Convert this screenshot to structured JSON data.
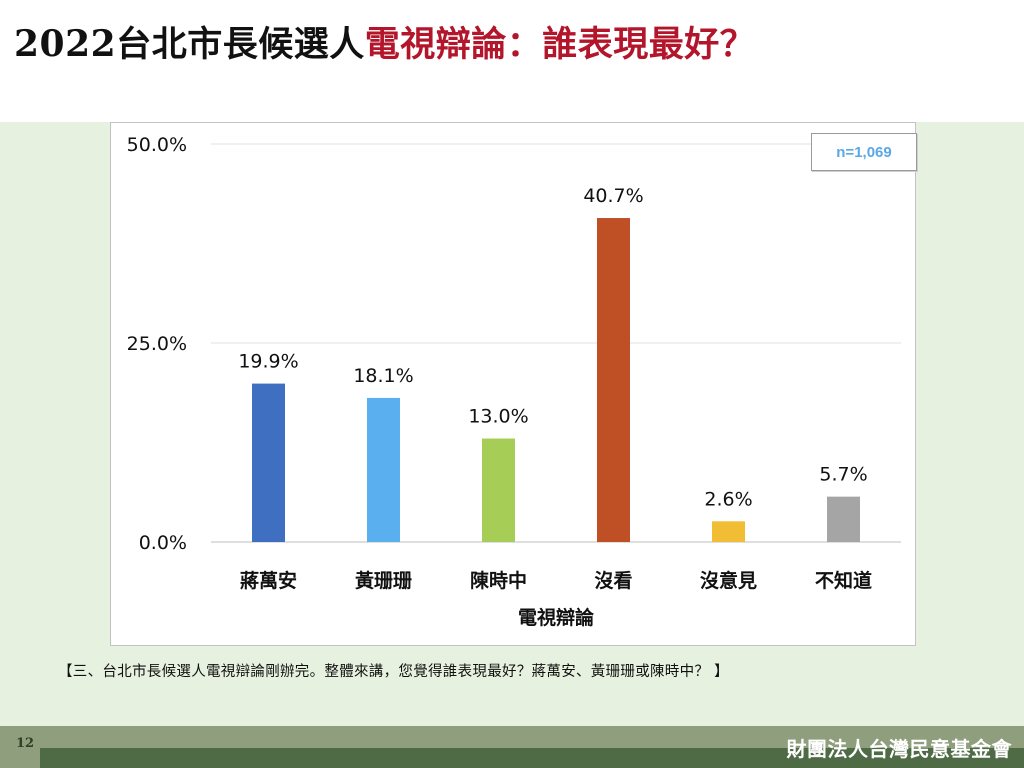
{
  "slide": {
    "title_year": "2022",
    "title_black": "台北市長候選人",
    "title_red": "電視辯論：誰表現最好？",
    "sample_size": "n=1,069",
    "question": "【三、台北市長候選人電視辯論剛辦完。整體來講，您覺得誰表現最好？蔣萬安、黃珊珊或陳時中？ 】",
    "page_number": "12",
    "organization": "財團法人台灣民意基金會"
  },
  "chart_data": {
    "type": "bar",
    "title": "",
    "xlabel": "電視辯論",
    "ylabel": "",
    "categories": [
      "蔣萬安",
      "黃珊珊",
      "陳時中",
      "沒看",
      "沒意見",
      "不知道"
    ],
    "values": [
      19.9,
      18.1,
      13.0,
      40.7,
      2.6,
      5.7
    ],
    "value_labels": [
      "19.9%",
      "18.1%",
      "13.0%",
      "40.7%",
      "2.6%",
      "5.7%"
    ],
    "colors": [
      "#3e6fc0",
      "#5ab0ee",
      "#a6ce56",
      "#bf5026",
      "#f1bd34",
      "#a5a5a5"
    ],
    "ylim": [
      0,
      50
    ],
    "yticks": [
      0,
      25,
      50
    ],
    "ytick_labels": [
      "0.0%",
      "25.0%",
      "50.0%"
    ],
    "grid": true,
    "legend": "none"
  }
}
